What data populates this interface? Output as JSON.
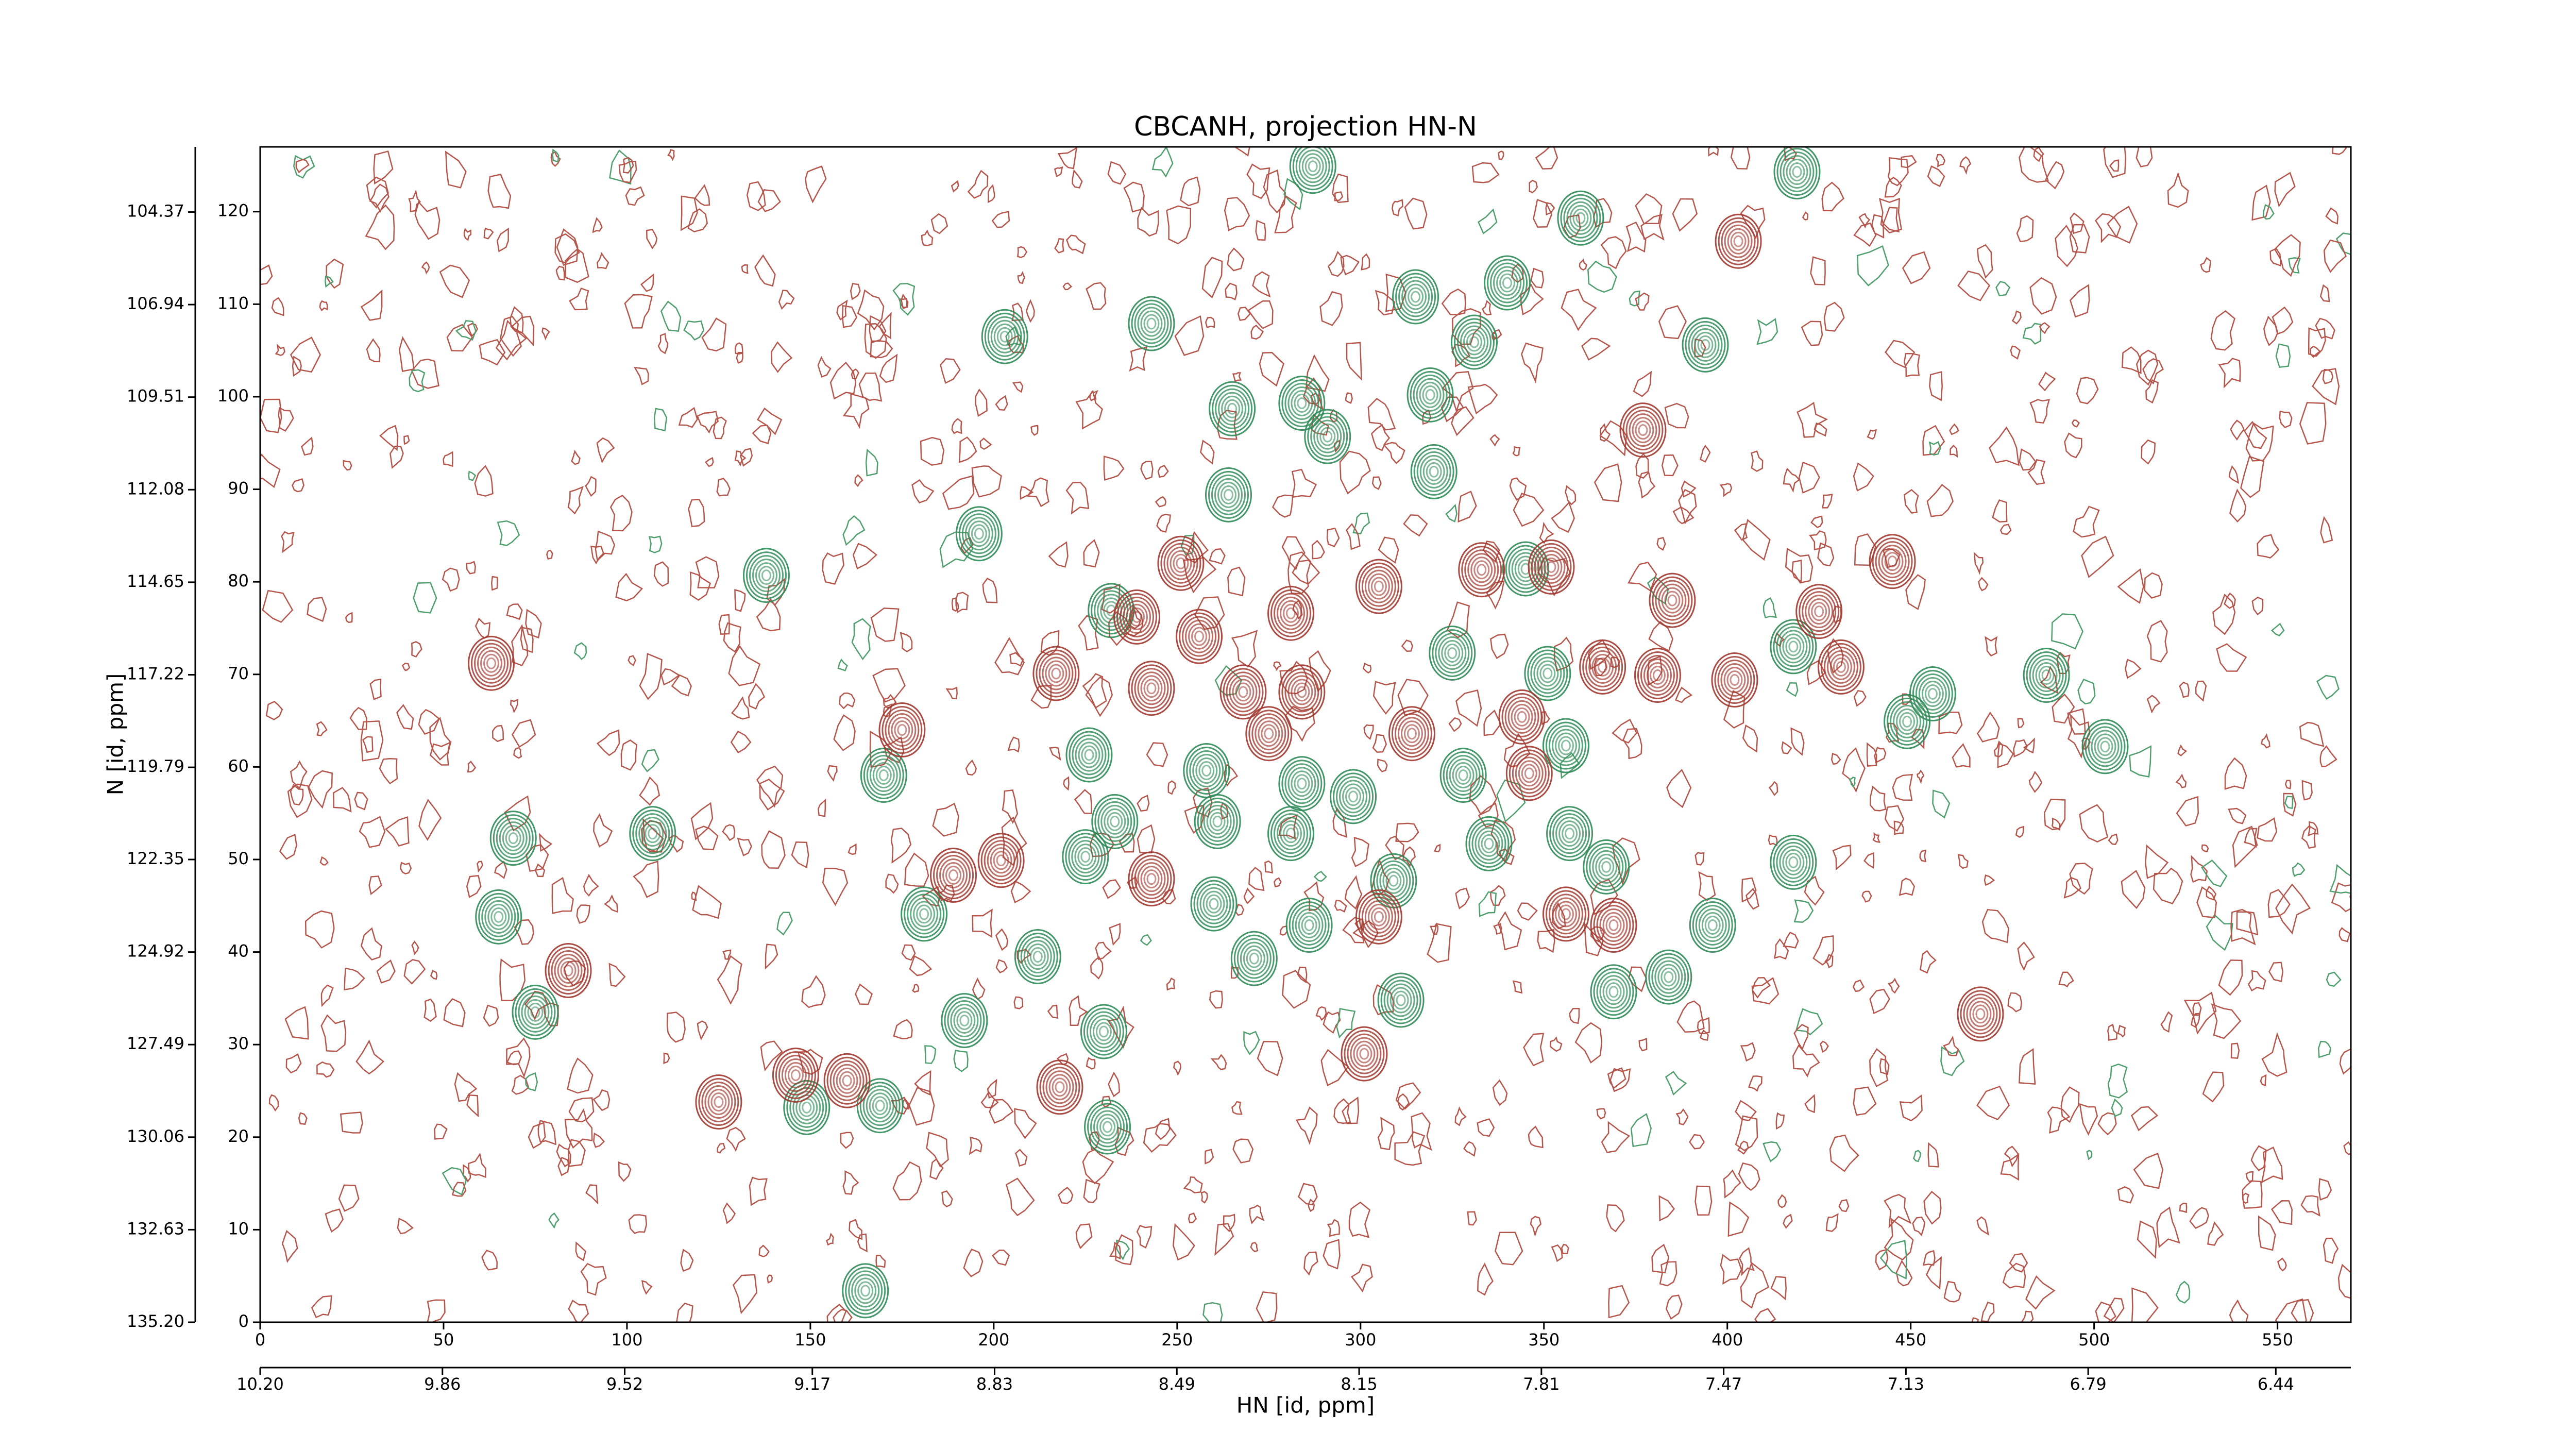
{
  "chart_data": {
    "type": "contour",
    "title": "CBCANH, projection HN-N",
    "x_label": "HN [id, ppm]",
    "y_label": "N [id, ppm]",
    "xlim": [
      0,
      570
    ],
    "ylim": [
      0,
      127
    ],
    "xticks": [
      0,
      50,
      100,
      150,
      200,
      250,
      300,
      350,
      400,
      450,
      500,
      550
    ],
    "yticks": [
      0,
      10,
      20,
      30,
      40,
      50,
      60,
      70,
      80,
      90,
      100,
      110,
      120
    ],
    "x2lim": [
      10.2,
      6.3
    ],
    "x2ticks": [
      {
        "value": 10.2,
        "label": "10.20"
      },
      9.86,
      9.52,
      9.17,
      8.83,
      8.49,
      8.15,
      7.81,
      7.47,
      7.13,
      6.79,
      6.44
    ],
    "y2lim": [
      135.2,
      102.56
    ],
    "y2ticks": [
      {
        "value": 135.2,
        "label": "135.20"
      },
      132.63,
      130.06,
      127.49,
      124.92,
      122.35,
      119.79,
      117.22,
      114.65,
      112.08,
      109.51,
      106.94,
      104.37
    ],
    "series": [
      {
        "color": "#2e8b57",
        "x": [
          287,
          419,
          360,
          203,
          243,
          315,
          340,
          331,
          394,
          265,
          284,
          319,
          291,
          264,
          196,
          138,
          232,
          320,
          345,
          325,
          351,
          418,
          487,
          503,
          356,
          170,
          226,
          107,
          69,
          65,
          233,
          225,
          261,
          281,
          309,
          335,
          357,
          367,
          418,
          396,
          384,
          369,
          311,
          260,
          181,
          212,
          192,
          230,
          75,
          149,
          169,
          231,
          165,
          258,
          284,
          298,
          328,
          286,
          271,
          449,
          456
        ],
        "y": [
          124.9,
          124.3,
          119.3,
          106.5,
          107.9,
          110.8,
          112.3,
          105.9,
          105.6,
          98.7,
          99.3,
          100.2,
          95.7,
          89.4,
          85.2,
          80.7,
          76.9,
          91.9,
          81.4,
          72.3,
          70.1,
          73.0,
          69.9,
          62.2,
          62.3,
          59.1,
          61.3,
          52.8,
          52.3,
          43.8,
          54.1,
          50.3,
          54.1,
          52.8,
          47.7,
          51.7,
          52.8,
          49.2,
          49.7,
          42.9,
          37.3,
          35.7,
          34.8,
          45.2,
          44.1,
          39.5,
          32.6,
          31.4,
          33.5,
          23.2,
          23.4,
          21.1,
          3.4,
          59.6,
          58.2,
          56.8,
          59.1,
          42.9,
          39.3,
          64.9,
          67.9
        ]
      },
      {
        "color": "#a0392f",
        "x": [
          403,
          377,
          445,
          251,
          239,
          256,
          281,
          305,
          333,
          352,
          385,
          425,
          217,
          243,
          268,
          284,
          314,
          275,
          344,
          175,
          63,
          84,
          125,
          146,
          160,
          218,
          301,
          356,
          369,
          243,
          305,
          469,
          366,
          381,
          402,
          431,
          189,
          202,
          346
        ],
        "y": [
          116.8,
          96.4,
          82.2,
          82.0,
          76.2,
          74.1,
          76.6,
          79.5,
          81.3,
          81.6,
          78.0,
          76.8,
          70.1,
          68.5,
          68.1,
          68.1,
          63.6,
          63.6,
          65.4,
          64.0,
          71.2,
          38.0,
          23.8,
          26.7,
          26.1,
          25.4,
          29.0,
          44.1,
          42.9,
          47.9,
          43.8,
          33.3,
          70.8,
          69.9,
          69.4,
          70.8,
          48.3,
          49.9,
          59.3
        ]
      }
    ]
  }
}
